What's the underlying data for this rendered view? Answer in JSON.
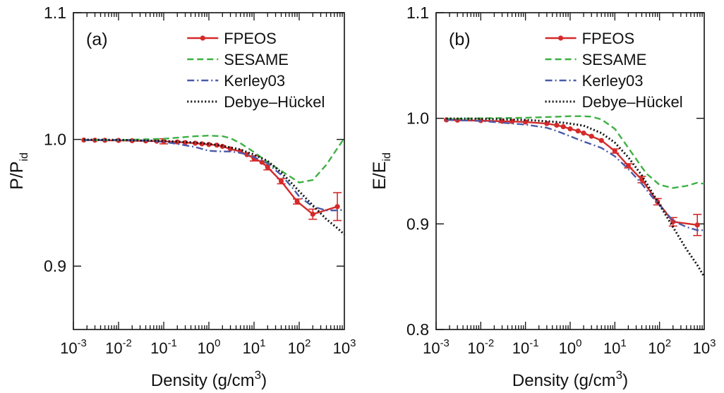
{
  "chart_data": [
    {
      "type": "line",
      "panel_label": "(a)",
      "xlabel_main": "Density (g/cm",
      "xlabel_sup": "3",
      "xlabel_close": ")",
      "ylabel_main": "P/P",
      "ylabel_sub": "id",
      "xscale": "log",
      "xlim": [
        0.001,
        1000
      ],
      "ylim": [
        0.85,
        1.1
      ],
      "x_ticks": [
        {
          "base": "10",
          "exp": "-3",
          "value": 0.001
        },
        {
          "base": "10",
          "exp": "-2",
          "value": 0.01
        },
        {
          "base": "10",
          "exp": "-1",
          "value": 0.1
        },
        {
          "base": "10",
          "exp": "0",
          "value": 1
        },
        {
          "base": "10",
          "exp": "1",
          "value": 10
        },
        {
          "base": "10",
          "exp": "2",
          "value": 100
        },
        {
          "base": "10",
          "exp": "3",
          "value": 1000
        }
      ],
      "y_ticks": [
        {
          "label": "0.9",
          "value": 0.9
        },
        {
          "label": "1.0",
          "value": 1.0
        },
        {
          "label": "1.1",
          "value": 1.1
        }
      ],
      "grid": false,
      "legend_position": "top-right",
      "series": [
        {
          "name": "FPEOS",
          "color": "#d42a2a",
          "style": "solid-markers",
          "x": [
            0.0017,
            0.003,
            0.005,
            0.01,
            0.02,
            0.04,
            0.07,
            0.1,
            0.2,
            0.3,
            0.5,
            0.7,
            1,
            1.5,
            2,
            3,
            5,
            7,
            10,
            15,
            20,
            40,
            90,
            200,
            700
          ],
          "y": [
            0.9995,
            0.9994,
            0.9993,
            0.9992,
            0.999,
            0.9988,
            0.9986,
            0.9985,
            0.998,
            0.9975,
            0.997,
            0.9965,
            0.996,
            0.9955,
            0.9945,
            0.9925,
            0.9905,
            0.988,
            0.985,
            0.982,
            0.978,
            0.967,
            0.951,
            0.941,
            0.947
          ],
          "err": [
            0,
            0,
            0,
            0,
            0,
            0,
            0,
            0.002,
            0,
            0,
            0,
            0,
            0,
            0,
            0,
            0,
            0,
            0,
            0.002,
            0,
            0.002,
            0.002,
            0.002,
            0.004,
            0.011
          ]
        },
        {
          "name": "SESAME",
          "color": "#3cb043",
          "style": "dashed",
          "x": [
            0.0017,
            0.01,
            0.1,
            0.5,
            1,
            2,
            3,
            5,
            10,
            20,
            50,
            100,
            200,
            400,
            700,
            1000
          ],
          "y": [
            0.9995,
            0.9995,
            1.0005,
            1.0025,
            1.003,
            1.0025,
            1.001,
            0.997,
            0.99,
            0.982,
            0.973,
            0.966,
            0.968,
            0.98,
            0.993,
            1.001
          ]
        },
        {
          "name": "Kerley03",
          "color": "#4a5aa8",
          "style": "dashdot",
          "x": [
            0.0017,
            0.01,
            0.05,
            0.1,
            0.2,
            0.5,
            1,
            2,
            3,
            5,
            10,
            20,
            40,
            70,
            100,
            200,
            400,
            700,
            1000
          ],
          "y": [
            0.9995,
            0.9995,
            0.999,
            0.998,
            0.9965,
            0.994,
            0.991,
            0.9905,
            0.9905,
            0.9895,
            0.986,
            0.981,
            0.972,
            0.962,
            0.955,
            0.947,
            0.944,
            0.944,
            0.9445
          ]
        },
        {
          "name": "Debye–Hückel",
          "color": "#111111",
          "style": "dotted",
          "x": [
            0.0017,
            0.01,
            0.1,
            0.5,
            1,
            2,
            5,
            10,
            20,
            40,
            70,
            100,
            200,
            400,
            700,
            1000
          ],
          "y": [
            0.9998,
            0.9996,
            0.9988,
            0.9975,
            0.9965,
            0.995,
            0.992,
            0.988,
            0.983,
            0.974,
            0.965,
            0.959,
            0.948,
            0.937,
            0.93,
            0.925
          ]
        }
      ]
    },
    {
      "type": "line",
      "panel_label": "(b)",
      "xlabel_main": "Density (g/cm",
      "xlabel_sup": "3",
      "xlabel_close": ")",
      "ylabel_main": "E/E",
      "ylabel_sub": "id",
      "xscale": "log",
      "xlim": [
        0.001,
        1000
      ],
      "ylim": [
        0.8,
        1.1
      ],
      "x_ticks": [
        {
          "base": "10",
          "exp": "-3",
          "value": 0.001
        },
        {
          "base": "10",
          "exp": "-2",
          "value": 0.01
        },
        {
          "base": "10",
          "exp": "-1",
          "value": 0.1
        },
        {
          "base": "10",
          "exp": "0",
          "value": 1
        },
        {
          "base": "10",
          "exp": "1",
          "value": 10
        },
        {
          "base": "10",
          "exp": "2",
          "value": 100
        },
        {
          "base": "10",
          "exp": "3",
          "value": 1000
        }
      ],
      "y_ticks": [
        {
          "label": "0.8",
          "value": 0.8
        },
        {
          "label": "0.9",
          "value": 0.9
        },
        {
          "label": "1.0",
          "value": 1.0
        },
        {
          "label": "1.1",
          "value": 1.1
        }
      ],
      "grid": false,
      "legend_position": "top-right",
      "series": [
        {
          "name": "FPEOS",
          "color": "#d42a2a",
          "style": "solid-markers",
          "x": [
            0.0017,
            0.003,
            0.01,
            0.03,
            0.05,
            0.1,
            0.3,
            0.5,
            0.7,
            1,
            1.5,
            2,
            3,
            5,
            10,
            20,
            40,
            90,
            200,
            700
          ],
          "y": [
            0.9985,
            0.9982,
            0.9978,
            0.9972,
            0.997,
            0.9965,
            0.995,
            0.9935,
            0.992,
            0.99,
            0.988,
            0.986,
            0.983,
            0.979,
            0.969,
            0.955,
            0.942,
            0.921,
            0.902,
            0.899
          ],
          "err": [
            0,
            0,
            0,
            0,
            0,
            0,
            0,
            0,
            0,
            0,
            0,
            0,
            0,
            0,
            0.002,
            0.002,
            0.003,
            0.003,
            0.004,
            0.01
          ]
        },
        {
          "name": "SESAME",
          "color": "#3cb043",
          "style": "dashed",
          "x": [
            0.0017,
            0.01,
            0.1,
            0.5,
            1,
            2,
            3,
            5,
            10,
            20,
            50,
            100,
            200,
            400,
            700,
            1000
          ],
          "y": [
            0.9995,
            1.0,
            1.0005,
            1.0015,
            1.002,
            1.002,
            1.0015,
            0.999,
            0.99,
            0.972,
            0.948,
            0.937,
            0.934,
            0.936,
            0.939,
            0.938
          ]
        },
        {
          "name": "Kerley03",
          "color": "#4a5aa8",
          "style": "dashdot",
          "x": [
            0.0017,
            0.01,
            0.1,
            0.3,
            0.5,
            1,
            2,
            5,
            10,
            20,
            40,
            70,
            100,
            200,
            400,
            700,
            1000
          ],
          "y": [
            0.9985,
            0.9975,
            0.994,
            0.991,
            0.988,
            0.983,
            0.978,
            0.972,
            0.964,
            0.952,
            0.938,
            0.925,
            0.918,
            0.903,
            0.897,
            0.894,
            0.894
          ]
        },
        {
          "name": "Debye–Hückel",
          "color": "#111111",
          "style": "dotted",
          "x": [
            0.0017,
            0.01,
            0.1,
            0.5,
            1,
            2,
            5,
            10,
            20,
            40,
            70,
            100,
            200,
            400,
            700,
            1000
          ],
          "y": [
            0.9998,
            0.9996,
            0.9985,
            0.9965,
            0.995,
            0.993,
            0.986,
            0.977,
            0.963,
            0.946,
            0.929,
            0.918,
            0.897,
            0.876,
            0.861,
            0.85
          ]
        }
      ]
    }
  ]
}
